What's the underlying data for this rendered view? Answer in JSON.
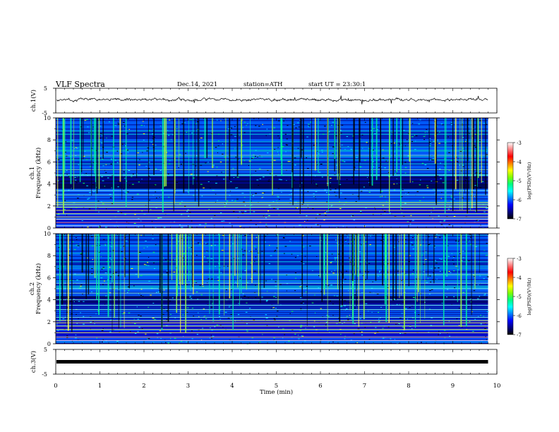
{
  "header": {
    "title": "VLF Spectra",
    "date": "Dec.14, 2021",
    "station": "station=ATH",
    "start": "start UT =  23:30:1"
  },
  "colors": {
    "scale": [
      "#000000",
      "#000080",
      "#0000ff",
      "#0080ff",
      "#00ffff",
      "#00ff80",
      "#80ff00",
      "#ffff00",
      "#ff8000",
      "#ff0000",
      "#ff8080",
      "#ffffff"
    ],
    "waveform": "#000000"
  },
  "chart_data": [
    {
      "type": "line",
      "name": "ch1-waveform",
      "ylabel": "ch.1(V)",
      "ylim": [
        -5,
        5
      ],
      "yticks": [
        "5",
        "-5"
      ],
      "xlim": [
        0,
        10
      ],
      "baseline": 0.4
    },
    {
      "type": "heatmap",
      "name": "ch1-spectrogram",
      "ylabel": "ch.1\nFrequency (kHz)",
      "ylabel_lines": [
        "ch.1",
        "Frequency (kHz)"
      ],
      "ylim": [
        0,
        10
      ],
      "yticks": [
        "0",
        "2",
        "4",
        "6",
        "8",
        "10"
      ],
      "xlim": [
        0,
        9.8
      ],
      "colorbar": {
        "label": "log(PSD)(V²/Hz)",
        "range": [
          -7,
          -3
        ],
        "ticks": [
          "-3",
          "-4",
          "-5",
          "-6",
          "-7"
        ]
      },
      "features": {
        "lines_khz": [
          0.2,
          0.5,
          0.8,
          1.0,
          1.3,
          1.6,
          1.9,
          2.1,
          2.3,
          3.0,
          3.4,
          4.8,
          5.3,
          6.6
        ],
        "dark_band_khz": [
          3.6,
          4.8
        ]
      }
    },
    {
      "type": "heatmap",
      "name": "ch2-spectrogram",
      "ylabel": "ch.2\nFrequency (kHz)",
      "ylabel_lines": [
        "ch.2",
        "Frequency (kHz)"
      ],
      "ylim": [
        0,
        10
      ],
      "yticks": [
        "0",
        "2",
        "4",
        "6",
        "8",
        "10"
      ],
      "xlim": [
        0,
        9.8
      ],
      "colorbar": {
        "label": "log(PSD)(V²/Hz)",
        "range": [
          -7,
          -3
        ],
        "ticks": [
          "-3",
          "-4",
          "-5",
          "-6",
          "-7"
        ]
      },
      "features": {
        "lines_khz": [
          0.3,
          0.6,
          1.0,
          1.3,
          1.6,
          1.9,
          2.1,
          2.4,
          3.1,
          3.5,
          4.0,
          4.6,
          5.0,
          5.5,
          6.3
        ],
        "dark_band_khz": [
          3.6,
          4.4
        ]
      }
    },
    {
      "type": "line",
      "name": "ch3-waveform",
      "ylabel": "ch.3(V)",
      "ylim": [
        -5,
        5
      ],
      "yticks": [
        "5",
        "-5"
      ],
      "xlim": [
        0,
        10
      ],
      "baseline": 0.0
    }
  ],
  "xaxis": {
    "label": "Time (min)",
    "ticks": [
      "0",
      "1",
      "2",
      "3",
      "4",
      "5",
      "6",
      "7",
      "8",
      "9",
      "10"
    ],
    "range": [
      0,
      10
    ]
  }
}
